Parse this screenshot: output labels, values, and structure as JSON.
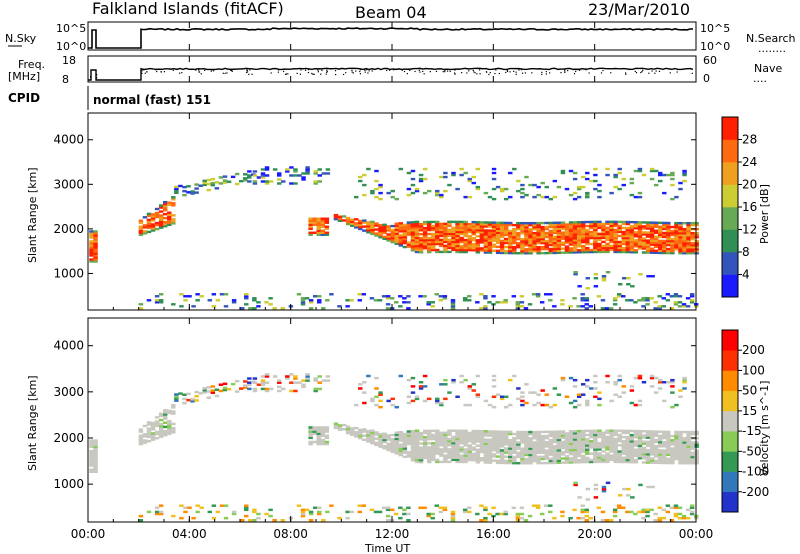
{
  "header": {
    "station": "Falkland Islands (fitACF)",
    "beam": "Beam 04",
    "date": "23/Mar/2010"
  },
  "strips": {
    "nsky_label": "N.Sky",
    "nsky_ticks": [
      "10^5",
      "10^0"
    ],
    "nsearch_label": "N.Search",
    "nsearch_dots": "........",
    "freq_label": "Freq.",
    "freq_unit": "[MHz]",
    "freq_ticks": [
      "18",
      "8"
    ],
    "nave_ticks": [
      "60",
      "0"
    ],
    "nave_label": "Nave",
    "nave_dots": "....",
    "cpid_label": "CPID",
    "cpid_value": "normal (fast) 151"
  },
  "chart_data": [
    {
      "type": "heatmap",
      "name": "power-panel",
      "ylabel": "Slant Range [km]",
      "yticks": [
        "4000",
        "3000",
        "2000",
        "1000"
      ],
      "ylim": [
        180,
        4600
      ],
      "xticks": [
        "00:00",
        "04:00",
        "08:00",
        "12:00",
        "16:00",
        "20:00",
        "00:00"
      ],
      "xlim_hours": [
        0,
        24
      ],
      "colorbar_label": "Power [dB]",
      "colorbar_ticks": [
        "28",
        "24",
        "20",
        "16",
        "12",
        "8",
        "4"
      ],
      "colors": [
        "#1a1aff",
        "#3355bb",
        "#2f8f55",
        "#66aa55",
        "#cccc33",
        "#f0a020",
        "#ff6a10",
        "#ff2000"
      ]
    },
    {
      "type": "heatmap",
      "name": "velocity-panel",
      "ylabel": "Slant Range [km]",
      "yticks": [
        "4000",
        "3000",
        "2000",
        "1000"
      ],
      "ylim": [
        180,
        4600
      ],
      "xticks": [
        "00:00",
        "04:00",
        "08:00",
        "12:00",
        "16:00",
        "20:00",
        "00:00"
      ],
      "xlim_hours": [
        0,
        24
      ],
      "xlabel": "Time UT",
      "colorbar_label": "Velocity [m s^-1]",
      "colorbar_ticks": [
        "200",
        "100",
        "50",
        "15",
        "-15",
        "-50",
        "-100",
        "-200"
      ],
      "colors": [
        "#2233cc",
        "#3377bb",
        "#339955",
        "#88cc55",
        "#c8c8c0",
        "#f0c020",
        "#ff8c00",
        "#ff3000",
        "#ff0000"
      ]
    }
  ]
}
